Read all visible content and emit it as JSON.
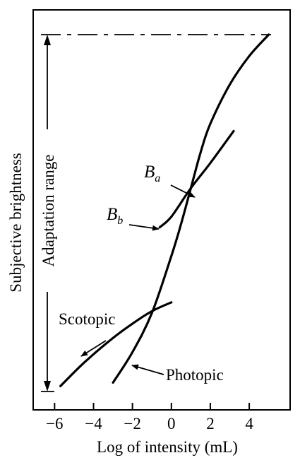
{
  "chart_data": {
    "type": "line",
    "xlabel": "Log of intensity (mL)",
    "ylabel": "Subjective brightness",
    "xlim": [
      -7.1,
      6.1
    ],
    "ylim": [
      0,
      100
    ],
    "x_ticks": [
      -6,
      -4,
      -2,
      0,
      2,
      4
    ],
    "x_tick_labels": [
      "−6",
      "−4",
      "−2",
      "0",
      "2",
      "4"
    ],
    "y_ticks": [],
    "grid": false,
    "series": [
      {
        "name": "Photopic",
        "x": [
          -3.0,
          -2.0,
          -1.0,
          0.0,
          0.5,
          1.0,
          1.5,
          2.0,
          3.0,
          4.0,
          5.0
        ],
        "y": [
          2.5,
          11,
          22,
          38,
          47,
          57,
          67,
          75,
          86,
          94,
          100
        ]
      },
      {
        "name": "Scotopic",
        "x": [
          -5.7,
          -4.5,
          -3.0,
          -2.0,
          -1.0,
          0.0
        ],
        "y": [
          1.5,
          8,
          15,
          19,
          22.5,
          25
        ]
      },
      {
        "name": "B_b",
        "x": [
          -0.6,
          0.0,
          1.0,
          2.0,
          3.2
        ],
        "y": [
          46,
          49,
          57,
          64,
          73
        ]
      }
    ],
    "annotations": [
      {
        "text": "Scotopic",
        "points_to_x": -3.2,
        "points_to_y": 14
      },
      {
        "text": "Photopic",
        "points_to_x": -2.0,
        "points_to_y": 9
      },
      {
        "text": "B",
        "subscript": "a",
        "points_to_x": 1.15,
        "points_to_y": 58
      },
      {
        "text": "B",
        "subscript": "b",
        "points_to_x": -0.6,
        "points_to_y": 46.5
      },
      {
        "text": "Adaptation range",
        "from_y": 0,
        "to_y": 100
      }
    ]
  }
}
